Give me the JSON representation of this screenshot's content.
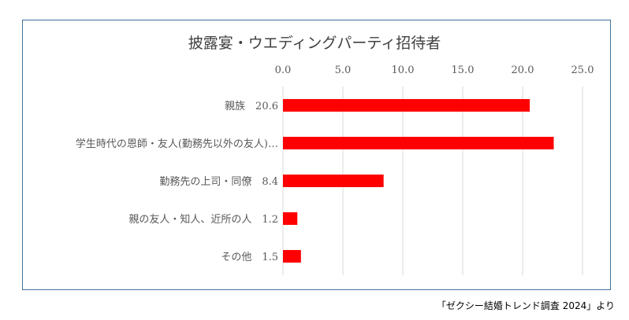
{
  "chart_data": {
    "type": "bar",
    "orientation": "horizontal",
    "title": "披露宴・ウエディングパーティ招待者",
    "categories": [
      "親族　20.6",
      "学生時代の恩師・友人(勤務先以外の友人)…",
      "勤務先の上司・同僚　8.4",
      "親の友人・知人、近所の人　1.2",
      "その他　1.5"
    ],
    "values": [
      20.6,
      22.6,
      8.4,
      1.2,
      1.5
    ],
    "xlim": [
      0,
      25
    ],
    "xticks": [
      "0.0",
      "5.0",
      "10.0",
      "15.0",
      "20.0",
      "25.0"
    ],
    "xlabel": "",
    "ylabel": "",
    "grid": true,
    "bar_color": "#ff0000"
  },
  "source_note": "「ゼクシー結婚トレンド調査 2024」より"
}
